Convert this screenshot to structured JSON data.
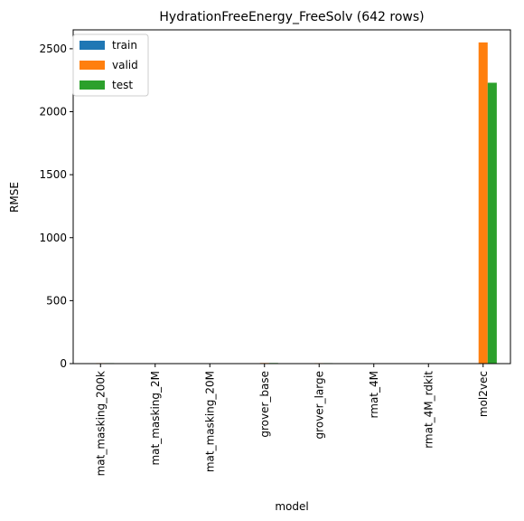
{
  "chart_data": {
    "type": "bar",
    "title": "HydrationFreeEnergy_FreeSolv (642 rows)",
    "xlabel": "model",
    "ylabel": "RMSE",
    "categories": [
      "mat_masking_200k",
      "mat_masking_2M",
      "mat_masking_20M",
      "grover_base",
      "grover_large",
      "rmat_4M",
      "rmat_4M_rdkit",
      "mol2vec"
    ],
    "series": [
      {
        "name": "train",
        "color": "#1f77b4",
        "values": [
          1.5,
          1.5,
          1.5,
          1.5,
          1.5,
          0.5,
          0.5,
          0.5
        ]
      },
      {
        "name": "valid",
        "color": "#ff7f0e",
        "values": [
          4,
          3,
          3,
          5,
          4,
          1,
          1,
          2550
        ]
      },
      {
        "name": "test",
        "color": "#2ca02c",
        "values": [
          4,
          3,
          3,
          5,
          4,
          1,
          1,
          2230
        ]
      }
    ],
    "ylim": [
      0,
      2650
    ],
    "yticks": [
      0,
      500,
      1000,
      1500,
      2000,
      2500
    ],
    "grid": false,
    "legend": "top-left"
  }
}
